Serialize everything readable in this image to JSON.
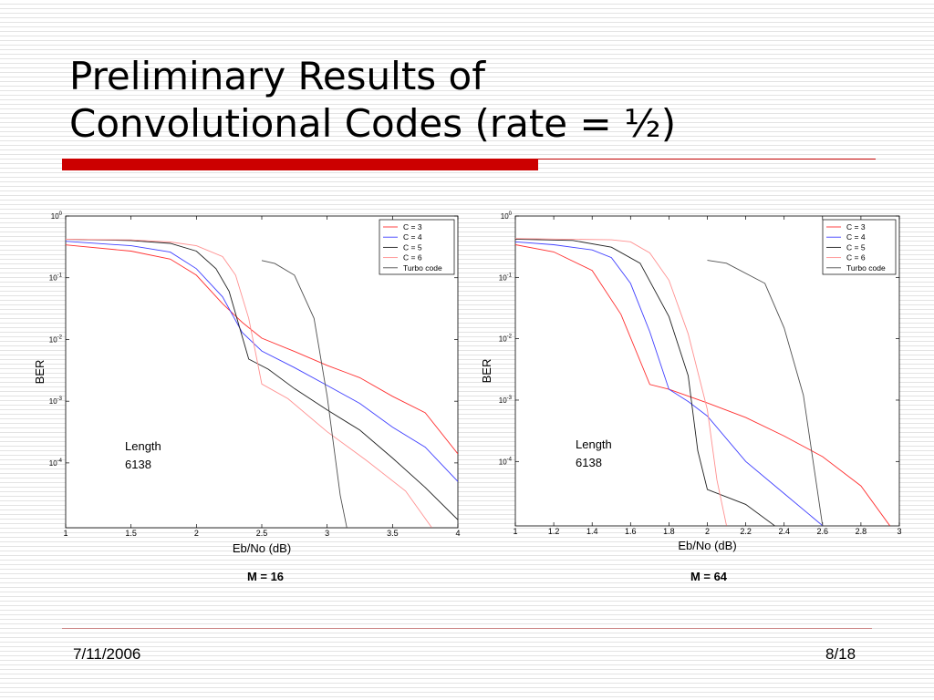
{
  "slide": {
    "title_line1": "Preliminary Results of",
    "title_line2": "Convolutional Codes (rate = ½)",
    "footer_date": "7/11/2006",
    "footer_page": "8/18",
    "accent_color": "#cc0000"
  },
  "chart_data": [
    {
      "type": "line",
      "caption": "M = 16",
      "xlabel": "Eb/No (dB)",
      "ylabel": "BER",
      "annotation": [
        "Length",
        "6138"
      ],
      "x_ticks": [
        "1",
        "1.5",
        "2",
        "2.5",
        "3",
        "3.5",
        "4"
      ],
      "y_ticks": [
        {
          "base": "10",
          "exp": "0"
        },
        {
          "base": "10",
          "exp": "-1"
        },
        {
          "base": "10",
          "exp": "-2"
        },
        {
          "base": "10",
          "exp": "-3"
        },
        {
          "base": "10",
          "exp": "-4"
        }
      ],
      "xlim": [
        1,
        4
      ],
      "ylim_log10": [
        -5.05,
        0
      ],
      "y_scale": "log",
      "grid": false,
      "legend_position": "top-right",
      "series": [
        {
          "name": "C = 3",
          "color": "#ff3030",
          "x": [
            1,
            1.5,
            1.8,
            2.0,
            2.2,
            2.35,
            2.5,
            2.75,
            3.0,
            3.25,
            3.5,
            3.75,
            4.0
          ],
          "y": [
            0.34,
            0.27,
            0.2,
            0.11,
            0.038,
            0.019,
            0.0105,
            0.0064,
            0.0038,
            0.0024,
            0.0012,
            0.00065,
            0.00014
          ]
        },
        {
          "name": "C = 4",
          "color": "#4040ff",
          "x": [
            1,
            1.5,
            1.8,
            2.0,
            2.2,
            2.35,
            2.5,
            2.75,
            3.0,
            3.25,
            3.5,
            3.75,
            4.0
          ],
          "y": [
            0.39,
            0.33,
            0.26,
            0.14,
            0.049,
            0.013,
            0.0065,
            0.0035,
            0.0018,
            0.00092,
            0.00038,
            0.00018,
            5e-05
          ]
        },
        {
          "name": "C = 5",
          "color": "#202020",
          "x": [
            1,
            1.5,
            1.8,
            2.0,
            2.15,
            2.25,
            2.4,
            2.55,
            2.75,
            3.0,
            3.25,
            3.5,
            3.75,
            4.0
          ],
          "y": [
            0.42,
            0.4,
            0.36,
            0.27,
            0.14,
            0.06,
            0.0048,
            0.0033,
            0.0016,
            0.00072,
            0.00034,
            0.00012,
            4e-05,
            1.2e-05
          ]
        },
        {
          "name": "C = 6",
          "color": "#ff9090",
          "x": [
            1,
            1.5,
            1.8,
            2.0,
            2.2,
            2.3,
            2.4,
            2.5,
            2.7,
            3.0,
            3.3,
            3.6,
            3.8
          ],
          "y": [
            0.42,
            0.41,
            0.38,
            0.33,
            0.22,
            0.11,
            0.022,
            0.0019,
            0.0011,
            0.00032,
            0.00011,
            3.5e-05,
            9e-06
          ]
        },
        {
          "name": "Turbo code",
          "color": "#505050",
          "x": [
            2.5,
            2.6,
            2.75,
            2.9,
            3.0,
            3.1,
            3.15
          ],
          "y": [
            0.19,
            0.17,
            0.11,
            0.022,
            0.0012,
            3e-05,
            9e-06
          ]
        }
      ]
    },
    {
      "type": "line",
      "caption": "M = 64",
      "xlabel": "Eb/No (dB)",
      "ylabel": "BER",
      "annotation": [
        "Length",
        "6138"
      ],
      "x_ticks": [
        "1",
        "1.2",
        "1.4",
        "1.6",
        "1.8",
        "2",
        "2.2",
        "2.4",
        "2.6",
        "2.8",
        "3"
      ],
      "y_ticks": [
        {
          "base": "10",
          "exp": "0"
        },
        {
          "base": "10",
          "exp": "-1"
        },
        {
          "base": "10",
          "exp": "-2"
        },
        {
          "base": "10",
          "exp": "-3"
        },
        {
          "base": "10",
          "exp": "-4"
        }
      ],
      "xlim": [
        1,
        3
      ],
      "ylim_log10": [
        -5.05,
        0
      ],
      "y_scale": "log",
      "grid": false,
      "legend_position": "top-right",
      "series": [
        {
          "name": "C = 3",
          "color": "#ff3030",
          "x": [
            1,
            1.2,
            1.4,
            1.55,
            1.7,
            1.8,
            2.0,
            2.2,
            2.4,
            2.6,
            2.8,
            2.95
          ],
          "y": [
            0.34,
            0.26,
            0.13,
            0.025,
            0.0018,
            0.0015,
            0.0009,
            0.00052,
            0.00026,
            0.00012,
            4e-05,
            9e-06
          ]
        },
        {
          "name": "C = 4",
          "color": "#4040ff",
          "x": [
            1,
            1.2,
            1.4,
            1.5,
            1.6,
            1.7,
            1.8,
            1.9,
            2.0,
            2.2,
            2.4,
            2.6
          ],
          "y": [
            0.38,
            0.34,
            0.28,
            0.21,
            0.08,
            0.013,
            0.0015,
            0.00095,
            0.00055,
            0.0001,
            3e-05,
            9e-06
          ]
        },
        {
          "name": "C = 5",
          "color": "#202020",
          "x": [
            1,
            1.3,
            1.5,
            1.65,
            1.8,
            1.9,
            1.95,
            2.0,
            2.2,
            2.35
          ],
          "y": [
            0.42,
            0.4,
            0.31,
            0.17,
            0.023,
            0.0025,
            0.00015,
            3.5e-05,
            2e-05,
            9e-06
          ]
        },
        {
          "name": "C = 6",
          "color": "#ff9090",
          "x": [
            1,
            1.5,
            1.6,
            1.7,
            1.8,
            1.9,
            2.0,
            2.05,
            2.1
          ],
          "y": [
            0.43,
            0.41,
            0.38,
            0.25,
            0.09,
            0.012,
            0.0007,
            5e-05,
            9e-06
          ]
        },
        {
          "name": "Turbo code",
          "color": "#505050",
          "x": [
            2.0,
            2.1,
            2.3,
            2.4,
            2.5,
            2.6
          ],
          "y": [
            0.19,
            0.17,
            0.08,
            0.015,
            0.0012,
            9e-06
          ]
        }
      ]
    }
  ]
}
